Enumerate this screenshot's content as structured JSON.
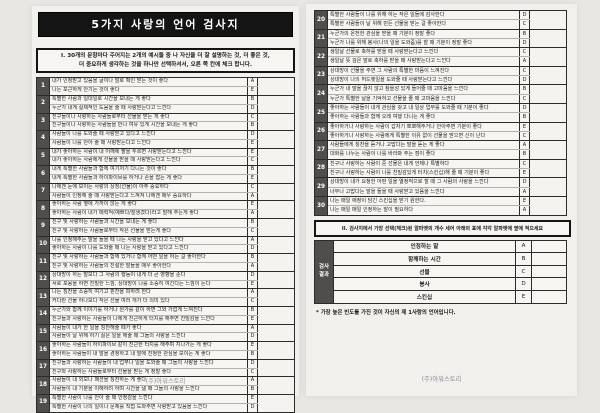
{
  "colors": {
    "title_bar_bg": "#141414",
    "number_column_bg": "#4f4e4c",
    "page_bg": "#f1f0ed",
    "scan_bg": "#e8e7e4"
  },
  "title": "5가지 사랑의 언어 검사지",
  "section1": {
    "instruction_line1": "I. 30개의 문항마다 주어지는 2개의 예시들 중 나 자신을 더 잘 설명하는 것, 더 좋은 것,",
    "instruction_line2": "더 중요하게 생각하는 것을 하나만 선택하셔서, 오른 쪽 칸에 체크 합니다."
  },
  "items_page1": [
    {
      "num": 1,
      "options": [
        {
          "letter": "A",
          "text": "내가 인정받고 있음을 글이나 말로 확인 받는 것이 좋다"
        },
        {
          "letter": "E",
          "text": "나는 포근하게 안기는 것이 좋다"
        }
      ]
    },
    {
      "num": 2,
      "options": [
        {
          "letter": "B",
          "text": "특별한 사람과 일대일로 시간을 보내는 게 좋다"
        },
        {
          "letter": "D",
          "text": "누군가 내게 실제적인 도움을 줄 때 사랑받는다고 느낀다"
        }
      ]
    },
    {
      "num": 3,
      "options": [
        {
          "letter": "C",
          "text": "친구들이나 사랑하는 사람들로부터 선물을 받는 게 좋다"
        },
        {
          "letter": "B",
          "text": "친구들이나 사랑하는 사람들을 만나 여유 있게 시간을 보내는 게 좋다"
        }
      ]
    },
    {
      "num": 4,
      "options": [
        {
          "letter": "D",
          "text": "사람들이 나를 도와줄 때 사랑받고 있다고 느낀다"
        },
        {
          "letter": "E",
          "text": "사람들이 나를 안아 줄 때 사랑받는다고 느낀다"
        }
      ]
    },
    {
      "num": 5,
      "options": [
        {
          "letter": "E",
          "text": "내가 좋아하는 사람이 내 어깨에 팔을 두르면 사랑받는다고 느낀다"
        },
        {
          "letter": "C",
          "text": "내가 좋아하는 사람에게 선물을 받을 때 사랑받는다고 느낀다"
        }
      ]
    },
    {
      "num": 6,
      "options": [
        {
          "letter": "B",
          "text": "내게 특별한 사람들과 함께 여기저기 다니는 것이 좋다"
        },
        {
          "letter": "E",
          "text": "내게 특별한 사람들과 하이파이브를 하거나 손을 잡는 게 좋다"
        }
      ]
    },
    {
      "num": 7,
      "options": [
        {
          "letter": "C",
          "text": "나에겐 눈에 보이는 사랑의 상징(선물)이 아주 중요하다"
        },
        {
          "letter": "A",
          "text": "사람들이 인정해 줄 때 사랑받는다고 느껴져 나에겐 매우 중요하다"
        }
      ]
    },
    {
      "num": 8,
      "options": [
        {
          "letter": "E",
          "text": "좋아하는 사람 옆에 가까이 앉는 게 좋다"
        },
        {
          "letter": "A",
          "text": "좋아하는 사람이 내가 매력적(예쁘다/잘생겼다)라고 말해 주는게 좋다"
        }
      ]
    },
    {
      "num": 9,
      "options": [
        {
          "letter": "B",
          "text": "친구 및 사랑하는 사람들과 시간을 보내는 게 좋다"
        },
        {
          "letter": "C",
          "text": "친구 및 사랑하는 사람들로부터 작은 선물을 받는게 좋다"
        }
      ]
    },
    {
      "num": 10,
      "options": [
        {
          "letter": "A",
          "text": "나를 인정해주는 말을 들을 때 나는 사랑을 받고 있다고 느낀다"
        },
        {
          "letter": "D",
          "text": "좋아하는 사람이 나를 도와줄 때 나는 사랑을 받고 있다고 느낀다"
        }
      ]
    },
    {
      "num": 11,
      "options": [
        {
          "letter": "B",
          "text": "친구 및 사랑하는 사람들과 함께 있거나 함께 어떤 일을 하는 걸 좋아한다"
        },
        {
          "letter": "A",
          "text": "친구 및 사랑하는 사람들의 친절한 말들을 매우 좋아한다"
        }
      ]
    },
    {
      "num": 12,
      "options": [
        {
          "letter": "D",
          "text": "상대방이 하는 말보다 그 사람의 행동이 내게 더 큰 영향을 준다"
        },
        {
          "letter": "E",
          "text": "서로 포옹을 하면 친밀한 느낌, 상대방이 나를 소중히 여긴다는 느낌이 든다"
        }
      ]
    },
    {
      "num": 13,
      "options": [
        {
          "letter": "A",
          "text": "나는 칭찬을 소중히 여기고 핀잔을 피하려 한다"
        },
        {
          "letter": "C",
          "text": "커다란 선물 하나보다 작은 선물 여러 개가 더 의미 있다"
        }
      ]
    },
    {
      "num": 14,
      "options": [
        {
          "letter": "B",
          "text": "누군가와 함께 이야기를 하거나 뭔가를 같이 하면 그와 가깝게 느껴진다"
        },
        {
          "letter": "E",
          "text": "친구들과 사랑하는 사람들이 나에게 친근하게 터치를 해주면 친밀감을 느낀다"
        }
      ]
    },
    {
      "num": 15,
      "options": [
        {
          "letter": "A",
          "text": "사람들이 내가 한 일을 칭찬해줄 때가 좋다"
        },
        {
          "letter": "D",
          "text": "사람들이 날 위해 하기 싫은 일을 해줄 때 그들의 사랑을 느낀다"
        }
      ]
    },
    {
      "num": 16,
      "options": [
        {
          "letter": "E",
          "text": "좋아하는 사람들이 하이파이브 같이 친근한 터치를 해주며 지나가는 게 좋다"
        },
        {
          "letter": "B",
          "text": "좋아하는 사람들이 내 말을 경청하고 내 말에 진정한 관심을 보이는 게 좋다"
        }
      ]
    },
    {
      "num": 17,
      "options": [
        {
          "letter": "D",
          "text": "친구들과 사랑하는 사람들이 내 업무나 일을 도와줄 때 그들의 사랑을 느낀다"
        },
        {
          "letter": "C",
          "text": "친구와 사랑하는 사람들로부터 선물을 받는 게 정말 좋다"
        }
      ]
    },
    {
      "num": 18,
      "options": [
        {
          "letter": "A",
          "text": "사람들이 내 외모나 패션을 칭찬하는 게 좋다"
        },
        {
          "letter": "B",
          "text": "사람들이 내 기분을 이해하려 하며 시간을 낼 때 그들의 사랑을 느낀다"
        }
      ]
    },
    {
      "num": 19,
      "options": [
        {
          "letter": "E",
          "text": "특별한 사람이 나를 안아 줄 때 안정감을 느낀다"
        },
        {
          "letter": "D",
          "text": "특별한 사람이 나의 일이나 문제를 직접 도와주면 사랑받고 있음을 느낀다"
        }
      ]
    }
  ],
  "items_page2": [
    {
      "num": 20,
      "options": [
        {
          "letter": "D",
          "text": "특별한 사람들이 나를 위해 하는 작은 일들에 감사한다"
        },
        {
          "letter": "C",
          "text": "특별한 사람들이 날 위해 만든 선물을 받는 걸 좋아한다"
        }
      ]
    },
    {
      "num": 21,
      "options": [
        {
          "letter": "B",
          "text": "누군가의 온전한 관심을 받을 때 기분이 정말 좋다"
        },
        {
          "letter": "D",
          "text": "누군가 나를 위해 봉사(나의 일을 도와줌)를 할 때 기분이 정말 좋다"
        }
      ]
    },
    {
      "num": 22,
      "options": [
        {
          "letter": "C",
          "text": "생일날 선물로 축하를 받을 때 사랑받는다고 느낀다"
        },
        {
          "letter": "A",
          "text": "생일날 뜻 깊은 말로 축하를 받을 때 사랑받는다고 느낀다"
        }
      ]
    },
    {
      "num": 23,
      "options": [
        {
          "letter": "C",
          "text": "상대방이 선물을 주면 그 사람의 특별한 마음이 느껴진다"
        },
        {
          "letter": "D",
          "text": "상대방이 나의 허드렛일을 도와줄 때 사랑받는다고 느낀다"
        }
      ]
    },
    {
      "num": 24,
      "options": [
        {
          "letter": "B",
          "text": "누군가 내 말을 끊지 않고 참을성 있게 들어줄 때 고마움을 느낀다"
        },
        {
          "letter": "C",
          "text": "누군가 특별한 날을 기억하고 선물을 줄 때 고마움을 느낀다"
        }
      ]
    },
    {
      "num": 25,
      "options": [
        {
          "letter": "D",
          "text": "좋아하는 사람들이 내게 관심을 갖고 내 일상 업무를 도와줄 때 기분이 좋다"
        },
        {
          "letter": "B",
          "text": "좋아하는 사람들과 함께 오래 여행 다니는 게 좋다"
        }
      ]
    },
    {
      "num": 26,
      "options": [
        {
          "letter": "E",
          "text": "좋아하거나 사랑하는 사람이 갑자기 뽀뽀해주거나 안아주면 기분이 좋다"
        },
        {
          "letter": "C",
          "text": "좋아하거나 사랑하는 사람에게 특별한 이유 없이 선물을 받으면 신이 난다"
        }
      ]
    },
    {
      "num": 27,
      "options": [
        {
          "letter": "A",
          "text": "사람들에게 칭찬을 듣거나 고맙다는 말을 듣는 게 좋다"
        },
        {
          "letter": "B",
          "text": "대화를 나누는 사람이 나를 바라봐 주는 점이 좋다"
        }
      ]
    },
    {
      "num": 28,
      "options": [
        {
          "letter": "C",
          "text": "친구나 사랑하는 사람이 준 선물은 내게 언제나 특별하다"
        },
        {
          "letter": "E",
          "text": "친구나 사랑하는 사람이 나를 친밀감있게 터치(스킨십)해 줄 때 기분이 좋다"
        }
      ]
    },
    {
      "num": 29,
      "options": [
        {
          "letter": "D",
          "text": "상대방이 내가 요청한 어떤 일을 열정적으로 할 때 그 사람의 사랑을 느낀다"
        },
        {
          "letter": "A",
          "text": "너무나 고맙다는 말을 들을 때 사랑받고 있음을 느낀다"
        }
      ]
    },
    {
      "num": 30,
      "options": [
        {
          "letter": "E",
          "text": "나는 매일 애정이 담긴 스킨십을 받기 원한다."
        },
        {
          "letter": "A",
          "text": "나는 매일 매일 인정하는 말이 필요하다"
        }
      ]
    }
  ],
  "section2": {
    "header": "II. 검사지에서 가장 선택(체크)된 알파벳의 개수 세어 아래의 표에 각각 알파벳에 옆에 적으세요",
    "side_label_lines": [
      "검사",
      "결과"
    ],
    "rows": [
      {
        "label": "인정하는 말",
        "letter": "A"
      },
      {
        "label": "함께하는 시간",
        "letter": "B"
      },
      {
        "label": "선물",
        "letter": "C"
      },
      {
        "label": "봉사",
        "letter": "D"
      },
      {
        "label": "스킨십",
        "letter": "E"
      }
    ],
    "footnote": "* 가장 높은 빈도를 가진 것이 자신의 제 1사랑의 언어입니다."
  },
  "footer": {
    "page1": "(주)아워스토리",
    "page2": "(주)아워스토리"
  }
}
